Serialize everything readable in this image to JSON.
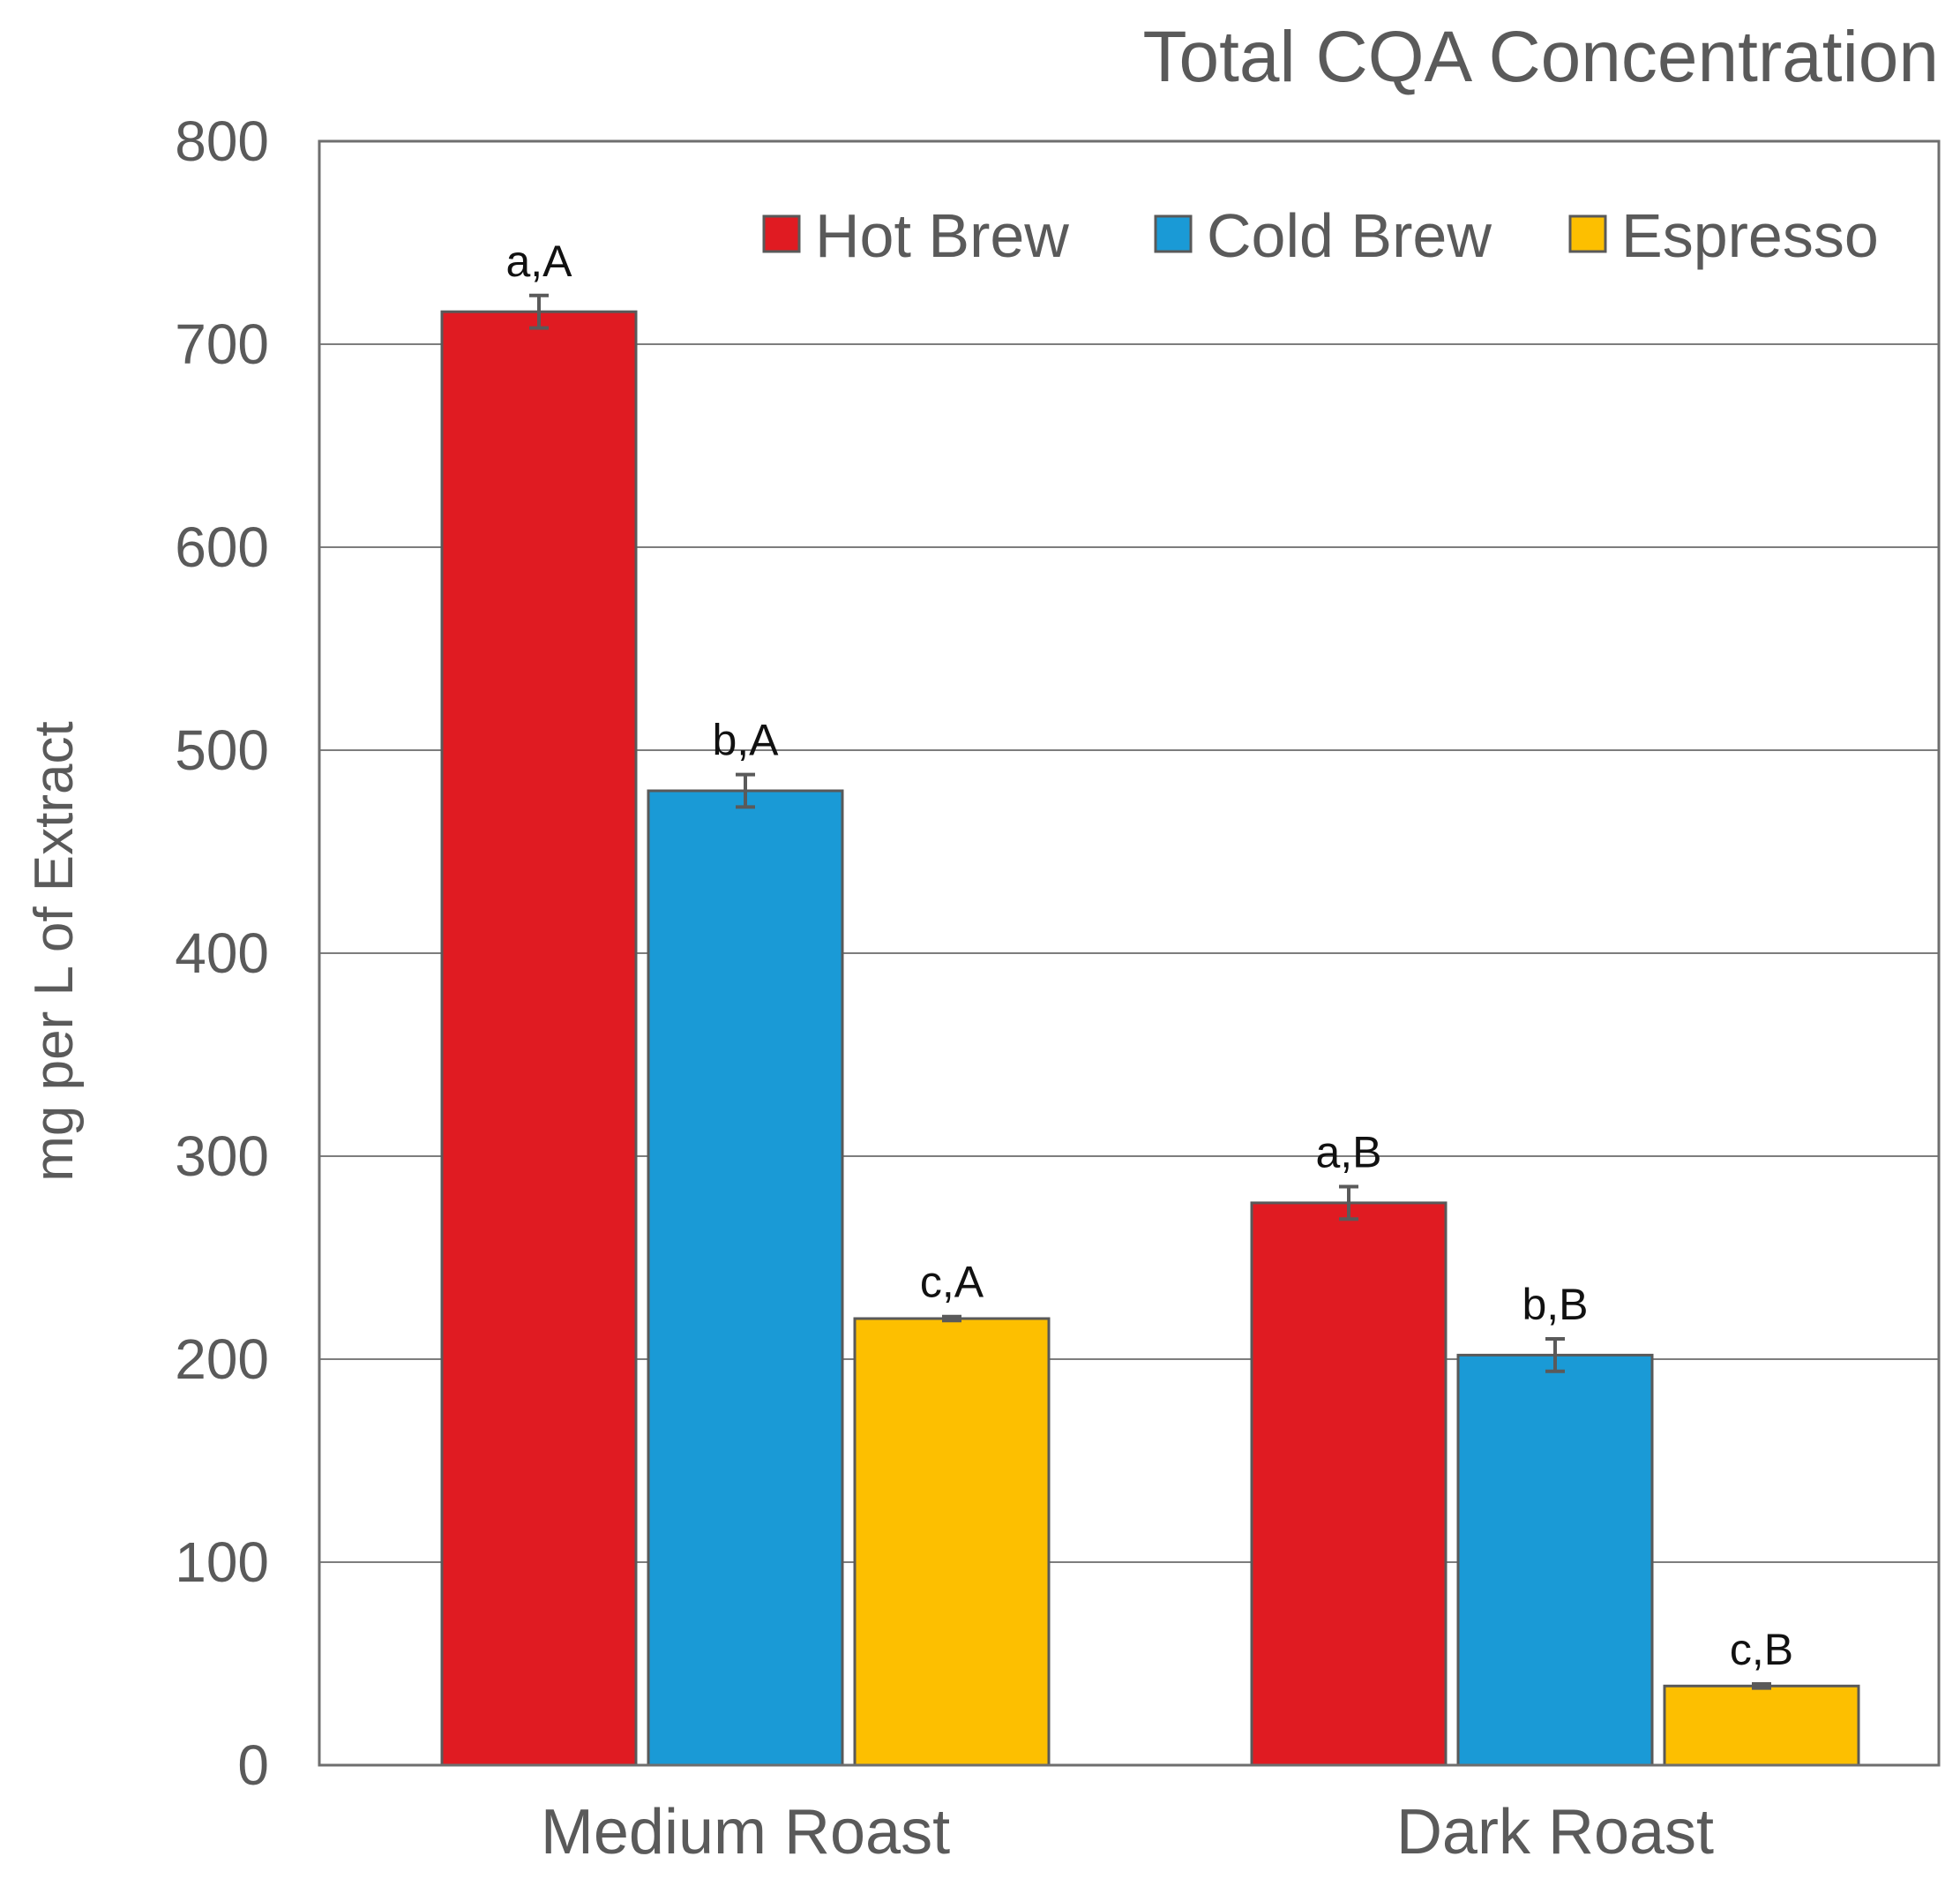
{
  "chart_data": {
    "type": "bar",
    "title": "Total CQA Concentration",
    "xlabel": "",
    "ylabel": "mg per L of Extract",
    "ylim": [
      0,
      800
    ],
    "yticks": [
      0,
      100,
      200,
      300,
      400,
      500,
      600,
      700,
      800
    ],
    "grid": true,
    "legend_position": "top-right",
    "categories": [
      "Medium Roast",
      "Dark Roast"
    ],
    "series": [
      {
        "name": "Hot Brew",
        "color": "#e01b22",
        "values": [
          716,
          277
        ],
        "errors": [
          8,
          8
        ],
        "labels": [
          "a,A",
          "a,B"
        ]
      },
      {
        "name": "Cold Brew",
        "color": "#1a9ad6",
        "values": [
          480,
          202
        ],
        "errors": [
          8,
          8
        ],
        "labels": [
          "b,A",
          "b,B"
        ]
      },
      {
        "name": "Espresso",
        "color": "#fdbf00",
        "values": [
          220,
          39
        ],
        "errors": [
          1,
          1
        ],
        "labels": [
          "c,A",
          "c,B"
        ]
      }
    ]
  }
}
